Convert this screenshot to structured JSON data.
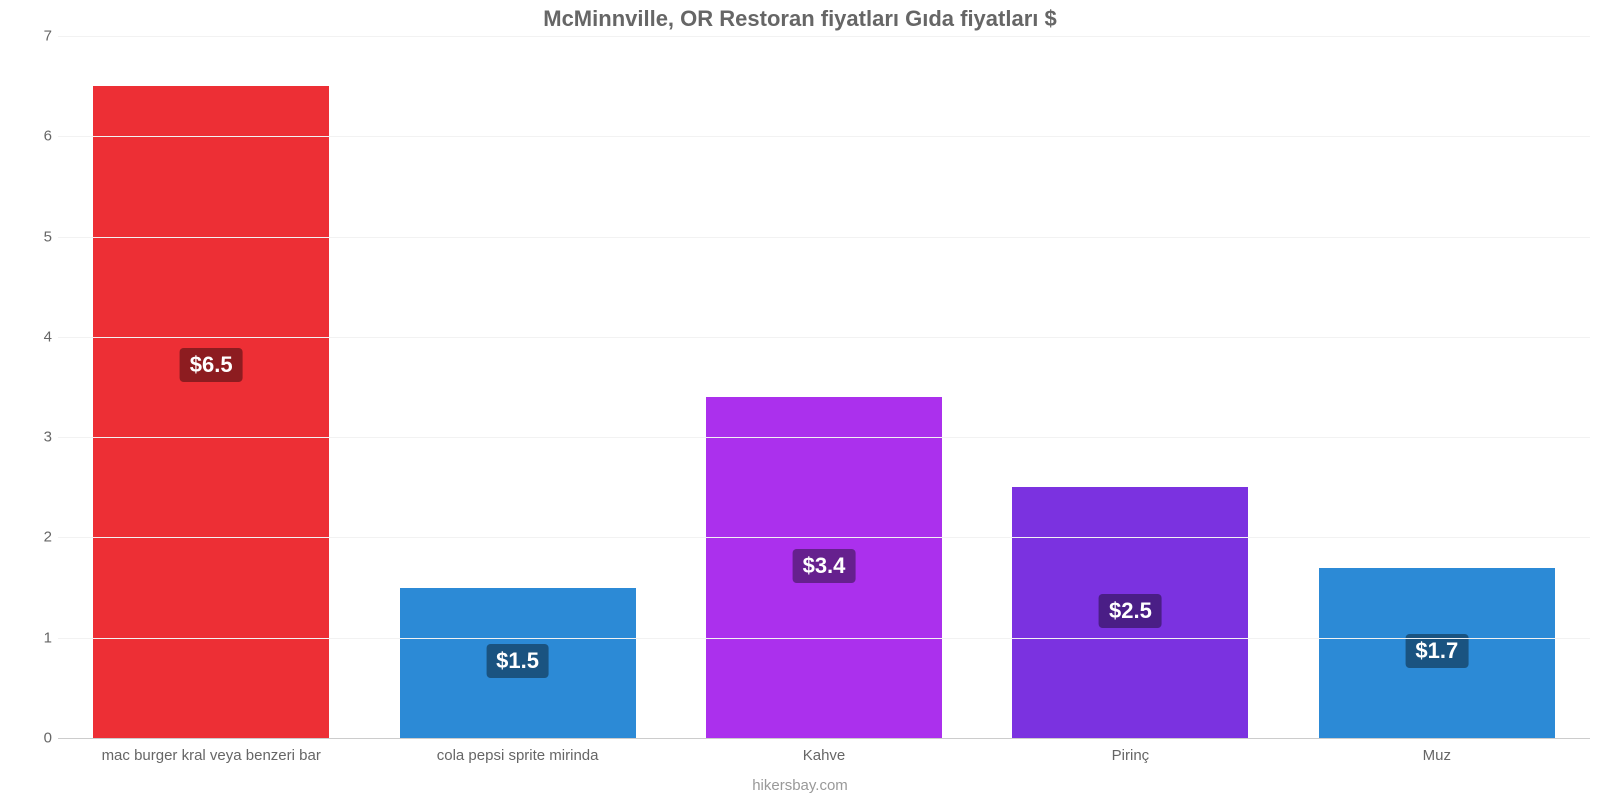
{
  "chart": {
    "type": "bar",
    "title": "McMinnville, OR Restoran fiyatları Gıda fiyatları $",
    "title_color": "#666666",
    "title_fontsize": 22,
    "title_fontweight": "bold",
    "footer": "hikersbay.com",
    "footer_color": "#999999",
    "footer_fontsize": 15,
    "background_color": "#ffffff",
    "ylim": [
      0,
      7
    ],
    "ytick_step": 1,
    "yticks": [
      0,
      1,
      2,
      3,
      4,
      5,
      6,
      7
    ],
    "ytick_color": "#666666",
    "ytick_fontsize": 15,
    "grid_color": "#f2f2f2",
    "baseline_color": "#cccccc",
    "bar_width_pct": 77,
    "value_label_fontsize": 22,
    "value_label_y_offset": 3.7,
    "x_label_color": "#666666",
    "x_label_fontsize": 15,
    "categories": [
      "mac burger kral veya benzeri bar",
      "cola pepsi sprite mirinda",
      "Kahve",
      "Pirinç",
      "Muz"
    ],
    "values": [
      6.5,
      1.5,
      3.4,
      2.5,
      1.7
    ],
    "value_labels": [
      "$6.5",
      "$1.5",
      "$3.4",
      "$2.5",
      "$1.7"
    ],
    "bar_colors": [
      "#ed2f35",
      "#2c8ad6",
      "#ab30ed",
      "#7b32e0",
      "#2c8ad6"
    ],
    "badge_bg_colors": [
      "#8d1c20",
      "#1a5380",
      "#66208e",
      "#4a1e86",
      "#1a5380"
    ]
  }
}
